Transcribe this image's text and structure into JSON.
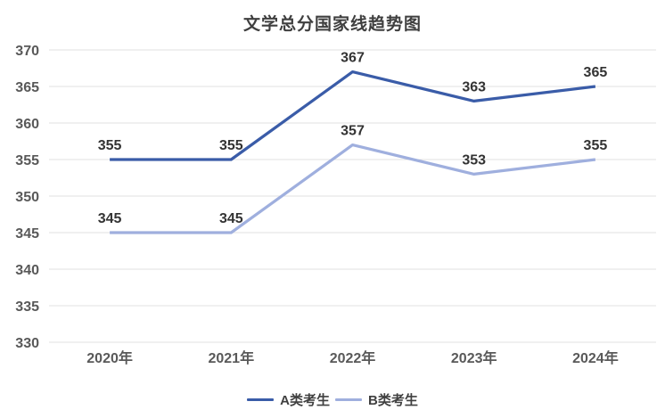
{
  "chart_data": {
    "type": "line",
    "title": "文学总分国家线趋势图",
    "categories": [
      "2020年",
      "2021年",
      "2022年",
      "2023年",
      "2024年"
    ],
    "series": [
      {
        "name": "A类考生",
        "color": "#3a5ca8",
        "values": [
          355,
          355,
          367,
          363,
          365
        ]
      },
      {
        "name": "B类考生",
        "color": "#9fafde",
        "values": [
          345,
          345,
          357,
          353,
          355
        ]
      }
    ],
    "ylim": [
      330,
      370
    ],
    "ytick_step": 5,
    "y_ticks": [
      330,
      335,
      340,
      345,
      350,
      355,
      360,
      365,
      370
    ],
    "grid": true,
    "data_labels": true,
    "legend_position": "bottom",
    "colors": {
      "gridline": "#e2e2e2",
      "axis_text": "#595959",
      "data_label_text": "#333333",
      "title_text": "#3f3f3f",
      "background": "#ffffff"
    }
  }
}
